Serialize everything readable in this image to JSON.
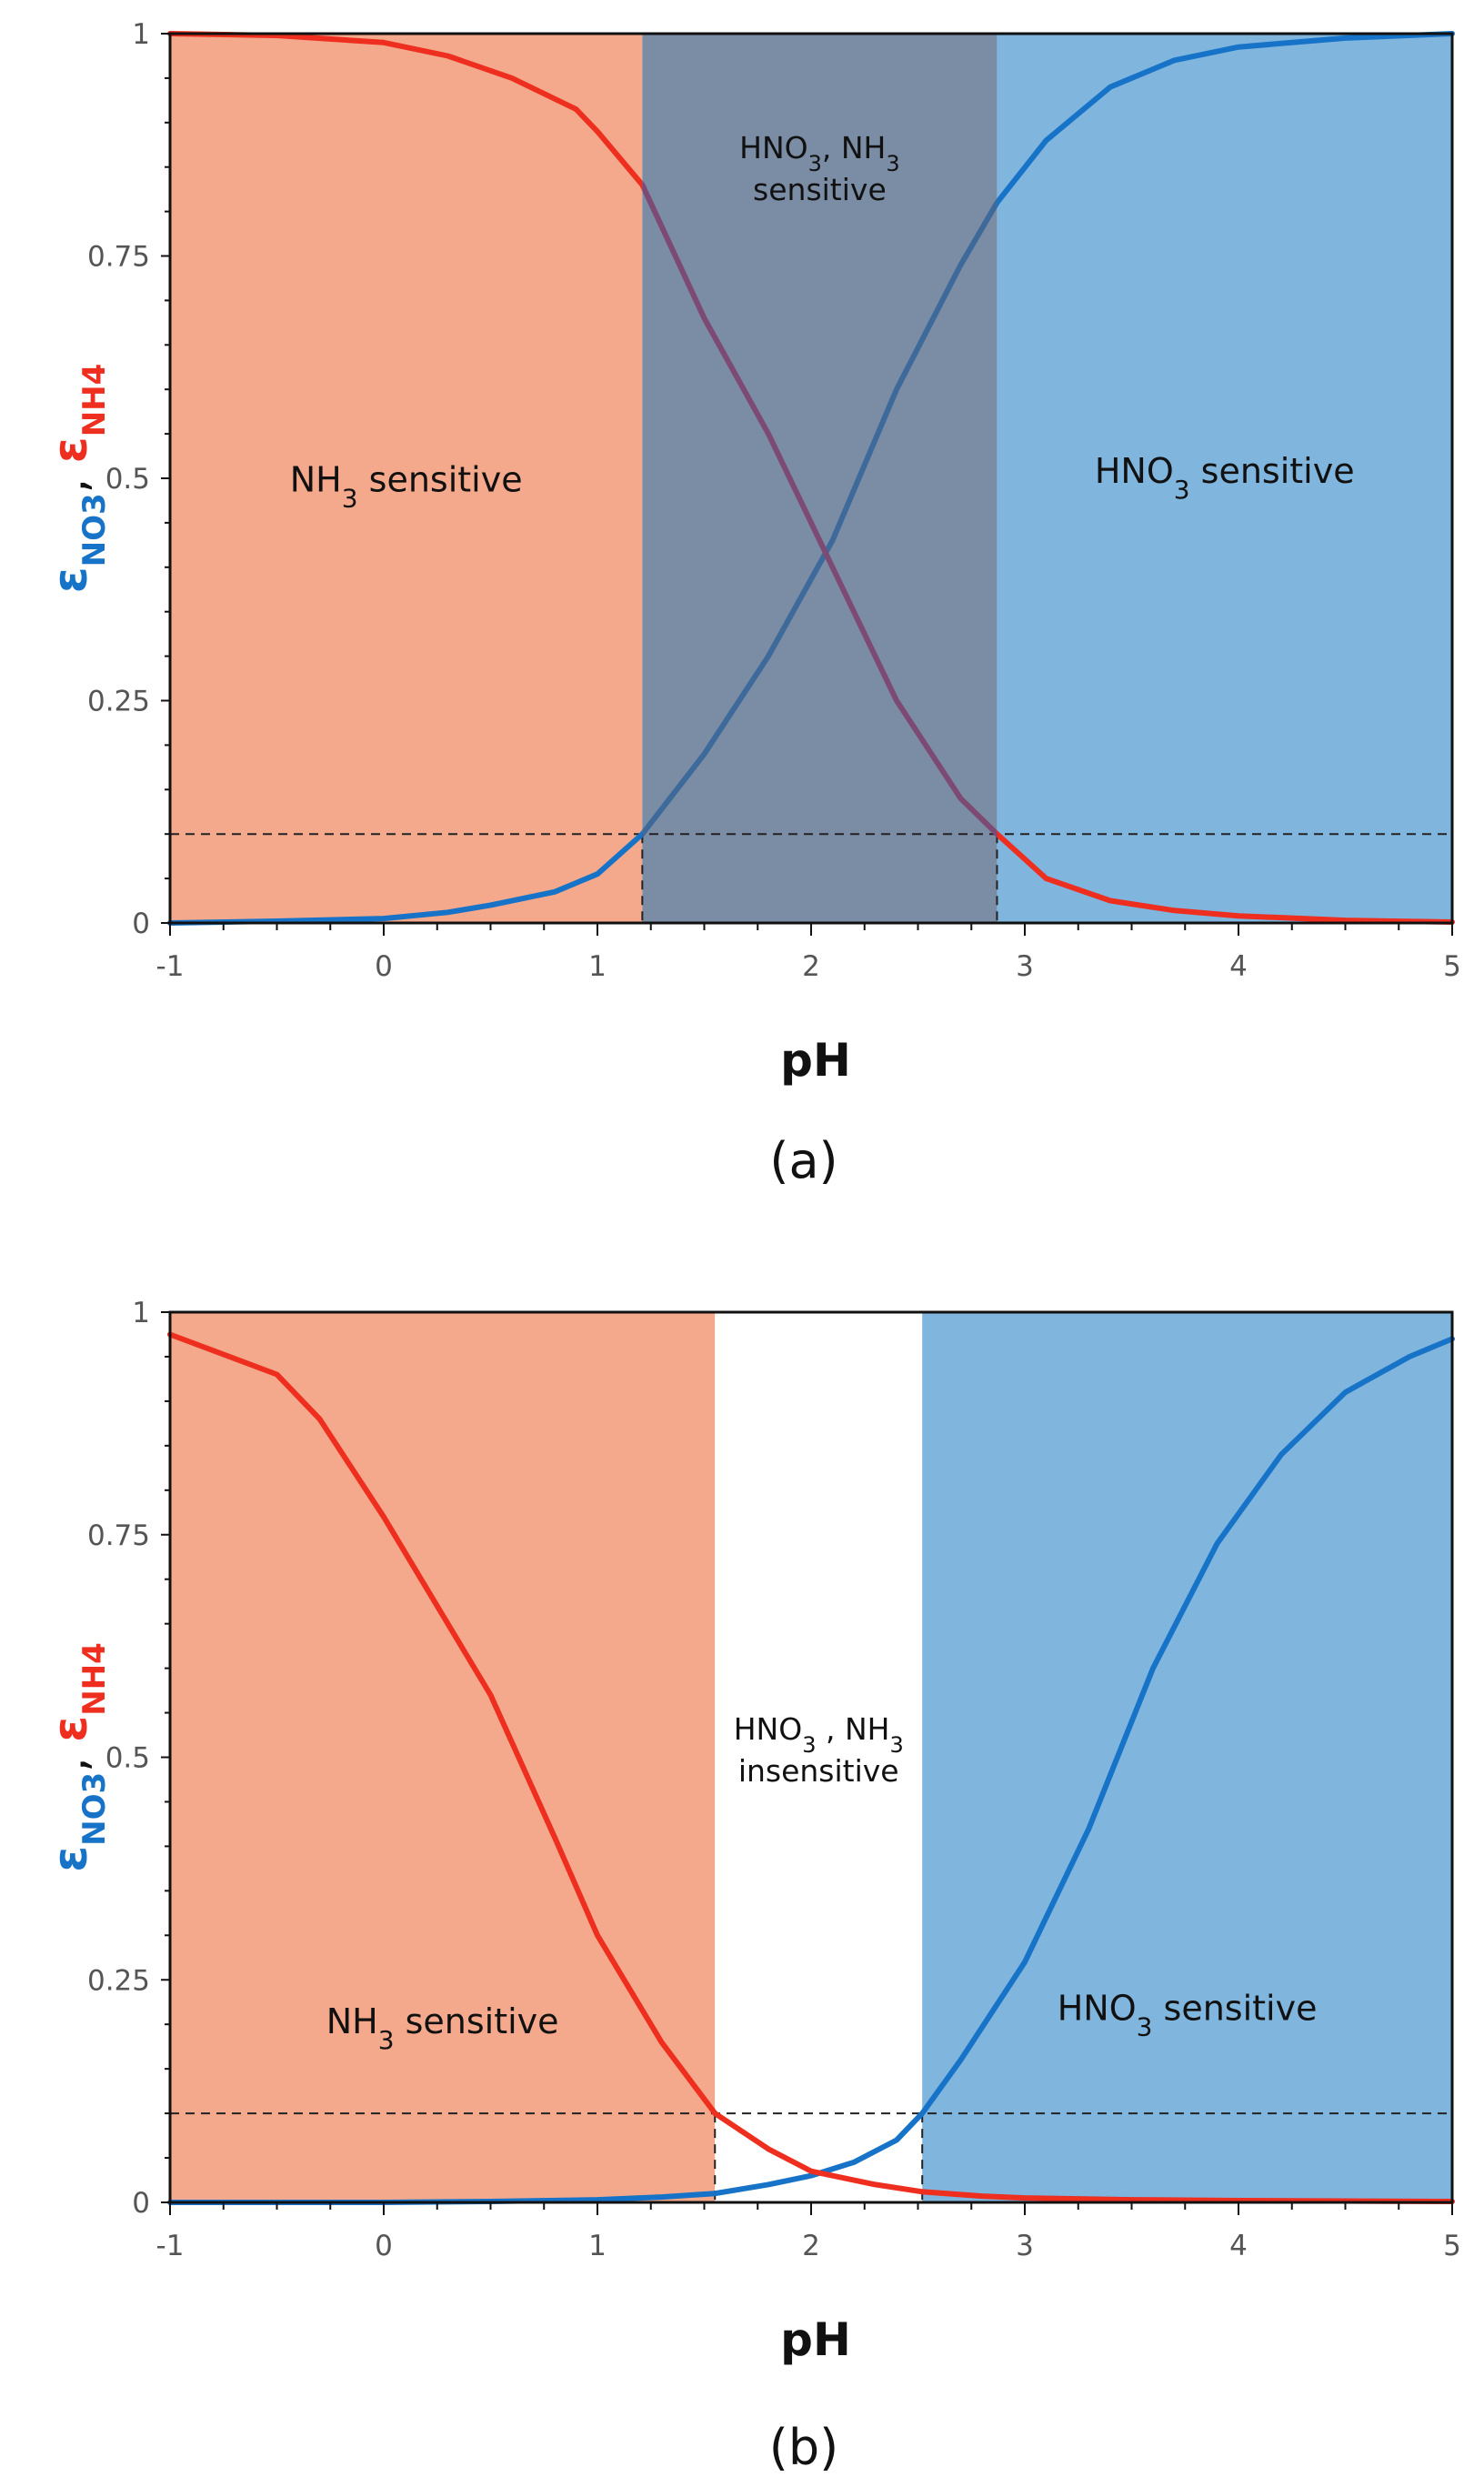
{
  "colors": {
    "nh3_region": "#F4A98C",
    "hno3_region": "#80B5DE",
    "overlap_region": "#7B8CA5",
    "insensitive_region": "#FFFFFF",
    "no3_curve": "#1673C7",
    "nh4_curve": "#EE2E1F",
    "overlap_curve": "#7D4A74"
  },
  "chart_data": [
    {
      "type": "line",
      "panel_label": "(a)",
      "xlabel": "pH",
      "ylabel": {
        "symbol_1": "ε",
        "subscript_1": "NO3",
        "separator": ",",
        "symbol_2": "ε",
        "subscript_2": "NH4"
      },
      "xlim": [
        -1,
        5
      ],
      "ylim": [
        0,
        1
      ],
      "x_ticks": [
        "-1",
        "0",
        "1",
        "2",
        "3",
        "4",
        "5"
      ],
      "y_ticks": [
        "0",
        "0.25",
        "0.5",
        "0.75",
        "1"
      ],
      "threshold": 0.1,
      "regions": [
        {
          "x0": -1,
          "x1": 1.21,
          "kind": "nh3",
          "label": {
            "line1": "NH",
            "sub1": "3",
            "rest1": " sensitive",
            "line2": ""
          }
        },
        {
          "x0": 1.21,
          "x1": 2.87,
          "kind": "overlap",
          "label": {
            "line1": "HNO",
            "sub1": "3",
            "rest1": ", NH",
            "sub2": "3",
            "line2": "sensitive"
          }
        },
        {
          "x0": 2.87,
          "x1": 5,
          "kind": "hno3",
          "label": {
            "line1": "HNO",
            "sub1": "3",
            "rest1": " sensitive",
            "line2": ""
          }
        }
      ],
      "series": [
        {
          "key": "no3",
          "x": [
            -1,
            -0.5,
            0,
            0.3,
            0.5,
            0.8,
            1.0,
            1.21,
            1.5,
            1.8,
            2.1,
            2.4,
            2.7,
            2.87,
            3.1,
            3.4,
            3.7,
            4.0,
            4.5,
            5.0
          ],
          "y": [
            0.0,
            0.002,
            0.005,
            0.012,
            0.02,
            0.035,
            0.055,
            0.1,
            0.19,
            0.3,
            0.43,
            0.6,
            0.74,
            0.81,
            0.88,
            0.94,
            0.97,
            0.985,
            0.995,
            1.0
          ]
        },
        {
          "key": "nh4",
          "x": [
            -1,
            -0.5,
            0,
            0.3,
            0.6,
            0.9,
            1.0,
            1.21,
            1.5,
            1.8,
            2.1,
            2.4,
            2.7,
            2.87,
            3.1,
            3.4,
            3.7,
            4.0,
            4.5,
            5.0
          ],
          "y": [
            1.0,
            0.998,
            0.99,
            0.975,
            0.95,
            0.915,
            0.89,
            0.83,
            0.68,
            0.55,
            0.4,
            0.25,
            0.14,
            0.1,
            0.05,
            0.025,
            0.014,
            0.008,
            0.003,
            0.001
          ]
        }
      ]
    },
    {
      "type": "line",
      "panel_label": "(b)",
      "xlabel": "pH",
      "ylabel": {
        "symbol_1": "ε",
        "subscript_1": "NO3",
        "separator": ",",
        "symbol_2": "ε",
        "subscript_2": "NH4"
      },
      "xlim": [
        -1,
        5
      ],
      "ylim": [
        0,
        1
      ],
      "x_ticks": [
        "-1",
        "0",
        "1",
        "2",
        "3",
        "4",
        "5"
      ],
      "y_ticks": [
        "0",
        "0.25",
        "0.5",
        "0.75",
        "1"
      ],
      "threshold": 0.1,
      "regions": [
        {
          "x0": -1,
          "x1": 1.55,
          "kind": "nh3",
          "label": {
            "line1": "NH",
            "sub1": "3",
            "rest1": " sensitive",
            "line2": ""
          }
        },
        {
          "x0": 1.55,
          "x1": 2.52,
          "kind": "insensitive",
          "label": {
            "line1": "HNO",
            "sub1": "3",
            "rest1": " , NH",
            "sub2": "3",
            "line2": "insensitive"
          }
        },
        {
          "x0": 2.52,
          "x1": 5,
          "kind": "hno3",
          "label": {
            "line1": "HNO",
            "sub1": "3",
            "rest1": " sensitive",
            "line2": ""
          }
        }
      ],
      "series": [
        {
          "key": "no3",
          "x": [
            -1,
            0,
            0.5,
            1.0,
            1.3,
            1.55,
            1.8,
            2.0,
            2.2,
            2.4,
            2.52,
            2.7,
            3.0,
            3.3,
            3.6,
            3.9,
            4.2,
            4.5,
            4.8,
            5.0
          ],
          "y": [
            0.0,
            0.0,
            0.001,
            0.003,
            0.006,
            0.01,
            0.02,
            0.03,
            0.045,
            0.07,
            0.1,
            0.16,
            0.27,
            0.42,
            0.6,
            0.74,
            0.84,
            0.91,
            0.95,
            0.97
          ]
        },
        {
          "key": "nh4",
          "x": [
            -1,
            -0.5,
            -0.3,
            0,
            0.3,
            0.5,
            0.8,
            1.0,
            1.3,
            1.55,
            1.8,
            2.0,
            2.3,
            2.52,
            2.8,
            3.0,
            3.5,
            4.0,
            5.0
          ],
          "y": [
            0.975,
            0.93,
            0.88,
            0.77,
            0.65,
            0.57,
            0.41,
            0.3,
            0.18,
            0.1,
            0.06,
            0.035,
            0.02,
            0.012,
            0.007,
            0.005,
            0.003,
            0.002,
            0.001
          ]
        }
      ]
    }
  ]
}
